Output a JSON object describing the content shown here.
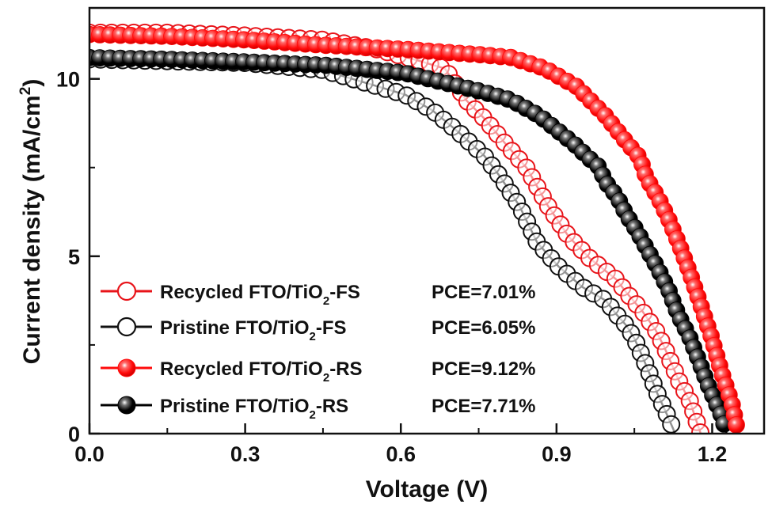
{
  "chart_data": {
    "type": "line",
    "title": "",
    "xlabel": "Voltage (V)",
    "ylabel": "Current density (mA/cm",
    "ylabel_sup": "2",
    "ylabel_close": ")",
    "xlim": [
      0,
      1.3
    ],
    "ylim": [
      0,
      12
    ],
    "xticks": [
      0.0,
      0.3,
      0.6,
      0.9,
      1.2
    ],
    "xtick_labels": [
      "0.0",
      "0.3",
      "0.6",
      "0.9",
      "1.2"
    ],
    "xminor": [
      0.15,
      0.45,
      0.75,
      1.05
    ],
    "yticks": [
      0,
      5,
      10
    ],
    "ytick_labels": [
      "0",
      "5",
      "10"
    ],
    "yminor": [
      2.5,
      7.5
    ],
    "grid": false,
    "legend_position": "bottom-left",
    "series": [
      {
        "name": "Recycled FTO/TiO2-FS",
        "label_main": "Recycled FTO/TiO",
        "label_sub": "2",
        "label_tail": "-FS",
        "pce": "PCE=7.01%",
        "color": "#e8141a",
        "marker": "open-circle",
        "points": [
          [
            0.0,
            11.3
          ],
          [
            0.15,
            11.3
          ],
          [
            0.3,
            11.22
          ],
          [
            0.45,
            11.1
          ],
          [
            0.55,
            10.85
          ],
          [
            0.635,
            10.51
          ],
          [
            0.685,
            10.29
          ],
          [
            0.726,
            9.4
          ],
          [
            0.761,
            8.88
          ],
          [
            0.8,
            8.2
          ],
          [
            0.843,
            7.48
          ],
          [
            0.883,
            6.43
          ],
          [
            0.924,
            5.54
          ],
          [
            0.965,
            4.93
          ],
          [
            1.015,
            4.35
          ],
          [
            1.035,
            3.97
          ],
          [
            1.065,
            3.46
          ],
          [
            1.091,
            2.92
          ],
          [
            1.107,
            2.46
          ],
          [
            1.122,
            1.96
          ],
          [
            1.137,
            1.45
          ],
          [
            1.157,
            0.92
          ],
          [
            1.172,
            0.25
          ],
          [
            1.178,
            0.0
          ]
        ]
      },
      {
        "name": "Pristine FTO/TiO2-FS",
        "label_main": "Pristine FTO/TiO",
        "label_sub": "2",
        "label_tail": "-FS",
        "pce": "PCE=6.05%",
        "color": "#111111",
        "marker": "open-circle",
        "points": [
          [
            0.0,
            10.55
          ],
          [
            0.15,
            10.5
          ],
          [
            0.3,
            10.45
          ],
          [
            0.45,
            10.25
          ],
          [
            0.543,
            9.84
          ],
          [
            0.609,
            9.55
          ],
          [
            0.661,
            9.11
          ],
          [
            0.711,
            8.5
          ],
          [
            0.761,
            7.83
          ],
          [
            0.791,
            7.25
          ],
          [
            0.828,
            6.43
          ],
          [
            0.863,
            5.38
          ],
          [
            0.904,
            4.71
          ],
          [
            0.95,
            4.13
          ],
          [
            0.995,
            3.75
          ],
          [
            1.015,
            3.37
          ],
          [
            1.035,
            3.04
          ],
          [
            1.05,
            2.68
          ],
          [
            1.065,
            2.19
          ],
          [
            1.079,
            1.7
          ],
          [
            1.094,
            1.14
          ],
          [
            1.11,
            0.63
          ],
          [
            1.125,
            0.13
          ],
          [
            1.128,
            0.0
          ]
        ]
      },
      {
        "name": "Recycled FTO/TiO2-RS",
        "label_main": "Recycled FTO/TiO",
        "label_sub": "2",
        "label_tail": "-RS",
        "pce": "PCE=9.12%",
        "color": "#ff0a0a",
        "marker": "filled-circle",
        "points": [
          [
            0.0,
            11.25
          ],
          [
            0.15,
            11.2
          ],
          [
            0.3,
            11.1
          ],
          [
            0.45,
            10.95
          ],
          [
            0.609,
            10.83
          ],
          [
            0.761,
            10.67
          ],
          [
            0.813,
            10.6
          ],
          [
            0.878,
            10.29
          ],
          [
            0.939,
            9.78
          ],
          [
            0.995,
            8.95
          ],
          [
            1.035,
            8.21
          ],
          [
            1.061,
            7.77
          ],
          [
            1.073,
            7.21
          ],
          [
            1.096,
            6.65
          ],
          [
            1.116,
            6.05
          ],
          [
            1.137,
            5.31
          ],
          [
            1.157,
            4.53
          ],
          [
            1.175,
            3.75
          ],
          [
            1.198,
            2.75
          ],
          [
            1.218,
            1.74
          ],
          [
            1.239,
            0.8
          ],
          [
            1.25,
            0.0
          ]
        ]
      },
      {
        "name": "Pristine FTO/TiO2-RS",
        "label_main": "Pristine FTO/TiO",
        "label_sub": "2",
        "label_tail": "-RS",
        "pce": "PCE=7.71%",
        "color": "#000000",
        "marker": "filled-circle",
        "points": [
          [
            0.0,
            10.6
          ],
          [
            0.15,
            10.55
          ],
          [
            0.3,
            10.48
          ],
          [
            0.457,
            10.38
          ],
          [
            0.609,
            10.16
          ],
          [
            0.761,
            9.62
          ],
          [
            0.813,
            9.4
          ],
          [
            0.868,
            8.95
          ],
          [
            0.935,
            8.15
          ],
          [
            0.962,
            7.77
          ],
          [
            0.98,
            7.54
          ],
          [
            0.997,
            7.05
          ],
          [
            1.018,
            6.65
          ],
          [
            1.035,
            6.16
          ],
          [
            1.056,
            5.69
          ],
          [
            1.076,
            5.16
          ],
          [
            1.096,
            4.64
          ],
          [
            1.117,
            4.02
          ],
          [
            1.134,
            3.37
          ],
          [
            1.157,
            2.7
          ],
          [
            1.177,
            1.96
          ],
          [
            1.193,
            1.34
          ],
          [
            1.218,
            0.51
          ],
          [
            1.228,
            0.0
          ]
        ]
      }
    ]
  }
}
